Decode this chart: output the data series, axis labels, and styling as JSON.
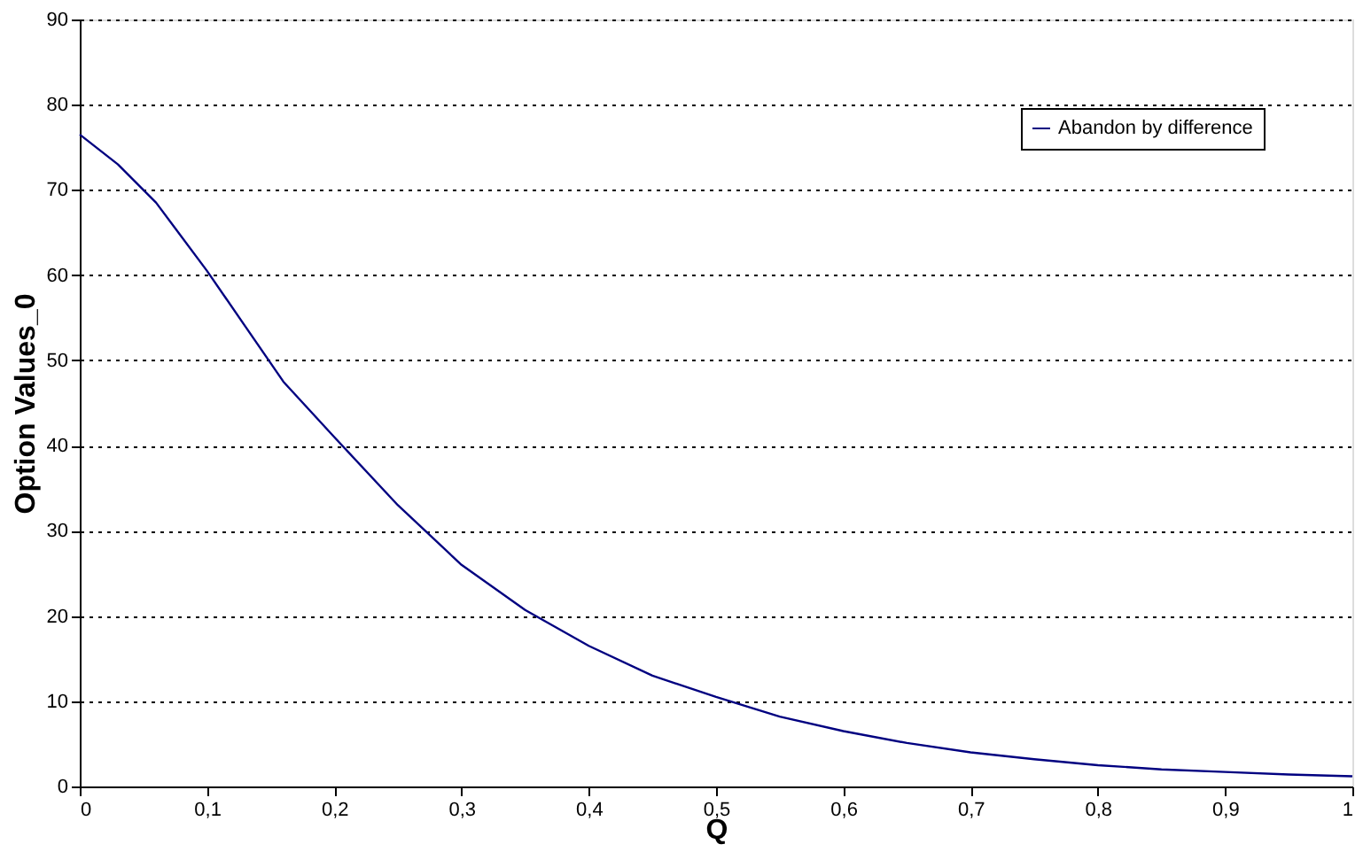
{
  "chart_data": {
    "type": "line",
    "xlabel": "Q",
    "ylabel": "Option Values_0",
    "x": [
      0,
      0.03,
      0.06,
      0.1,
      0.13,
      0.16,
      0.2,
      0.25,
      0.3,
      0.35,
      0.4,
      0.45,
      0.5,
      0.55,
      0.6,
      0.65,
      0.7,
      0.75,
      0.8,
      0.85,
      0.9,
      0.95,
      1.0
    ],
    "series": [
      {
        "name": "Abandon by difference",
        "color": "#000080",
        "values": [
          76.5,
          73,
          68.5,
          60.5,
          54,
          47.5,
          41,
          33,
          26,
          20.7,
          16.5,
          13,
          10.5,
          8.2,
          6.5,
          5.1,
          4,
          3.2,
          2.5,
          2,
          1.7,
          1.4,
          1.2
        ]
      }
    ],
    "xlim": [
      0,
      1
    ],
    "xticks": [
      0,
      {
        "value": 0.1,
        "label": "0,1"
      },
      {
        "value": 0.2,
        "label": "0,2"
      },
      {
        "value": 0.3,
        "label": "0,3"
      },
      {
        "value": 0.4,
        "label": "0,4"
      },
      {
        "value": 0.5,
        "label": "0,5"
      },
      {
        "value": 0.6,
        "label": "0,6"
      },
      {
        "value": 0.7,
        "label": "0,7"
      },
      {
        "value": 0.8,
        "label": "0,8"
      },
      {
        "value": 0.9,
        "label": "0,9"
      },
      1
    ],
    "ylim": [
      0,
      90
    ],
    "yticks": [
      0,
      10,
      20,
      30,
      40,
      50,
      60,
      70,
      80,
      90
    ],
    "grid": "y",
    "legend": "top right",
    "line_style": "solid",
    "marker": "none"
  }
}
